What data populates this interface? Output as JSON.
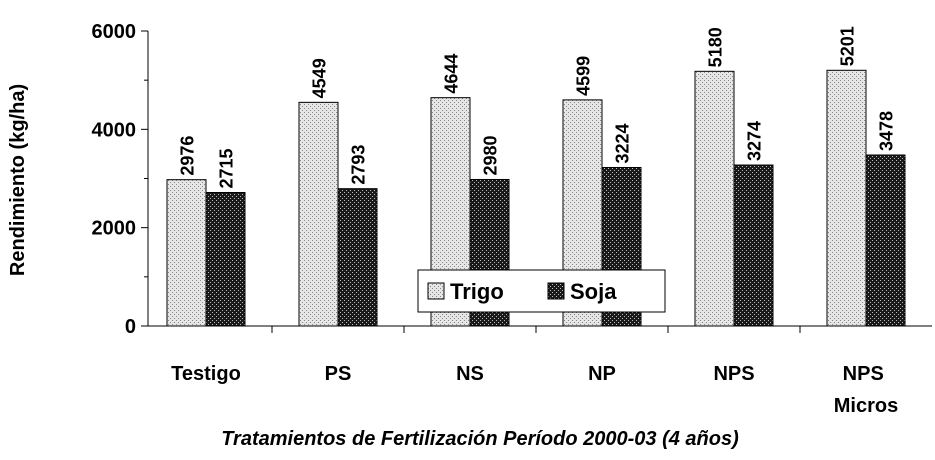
{
  "chart_data": {
    "type": "bar",
    "x_label": "Tratamientos de Fertilización Período 2000-03 (4 años)",
    "y_label": "Rendimiento (kg/ha)",
    "categories": [
      "Testigo",
      "PS",
      "NS",
      "NP",
      "NPS",
      "NPS Micros"
    ],
    "series": [
      {
        "name": "Trigo",
        "color": "#e6e6e6",
        "values": [
          2976,
          4549,
          4644,
          4599,
          5180,
          5201
        ]
      },
      {
        "name": "Soja",
        "color": "#1a1a1a",
        "values": [
          2715,
          2793,
          2980,
          3224,
          3274,
          3478
        ]
      }
    ],
    "ylim": [
      0,
      6000
    ],
    "yticks": [
      0,
      2000,
      4000,
      6000
    ],
    "minor_yticks": [
      1000,
      3000,
      5000
    ],
    "legend": "bottom-center"
  }
}
